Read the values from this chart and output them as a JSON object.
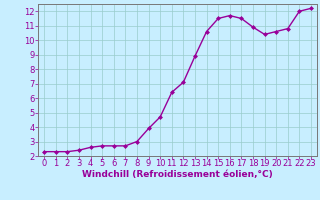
{
  "x": [
    0,
    1,
    2,
    3,
    4,
    5,
    6,
    7,
    8,
    9,
    10,
    11,
    12,
    13,
    14,
    15,
    16,
    17,
    18,
    19,
    20,
    21,
    22,
    23
  ],
  "y": [
    2.3,
    2.3,
    2.3,
    2.4,
    2.6,
    2.7,
    2.7,
    2.7,
    3.0,
    3.9,
    4.7,
    6.4,
    7.1,
    8.9,
    10.6,
    11.5,
    11.7,
    11.5,
    10.9,
    10.4,
    10.6,
    10.8,
    12.0,
    12.2
  ],
  "line_color": "#990099",
  "marker": "D",
  "marker_size": 2.0,
  "background_color": "#c8eeff",
  "grid_color": "#99cccc",
  "xlabel": "Windchill (Refroidissement éolien,°C)",
  "xlabel_color": "#990099",
  "tick_color": "#990099",
  "spine_color": "#777777",
  "xlim_min": -0.5,
  "xlim_max": 23.5,
  "ylim_min": 2.0,
  "ylim_max": 12.5,
  "yticks": [
    2,
    3,
    4,
    5,
    6,
    7,
    8,
    9,
    10,
    11,
    12
  ],
  "xticks": [
    0,
    1,
    2,
    3,
    4,
    5,
    6,
    7,
    8,
    9,
    10,
    11,
    12,
    13,
    14,
    15,
    16,
    17,
    18,
    19,
    20,
    21,
    22,
    23
  ],
  "tick_fontsize": 6,
  "xlabel_fontsize": 6.5,
  "line_width": 1.0
}
